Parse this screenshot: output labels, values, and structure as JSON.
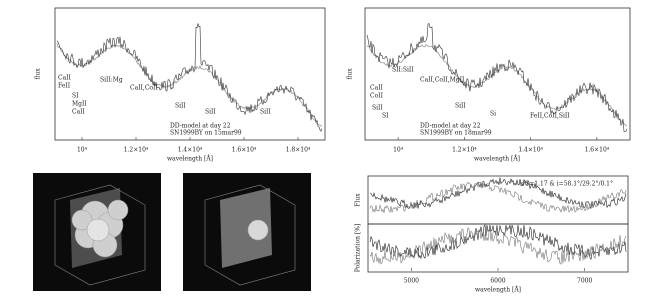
{
  "panels": [
    {
      "y_label": "flux",
      "x_label": "wavelength [Å]",
      "x_ticks": [
        "10⁴",
        "1.2×10⁴",
        "1.4×10⁴",
        "1.6×10⁴",
        "1.8×10⁴"
      ],
      "annotations": [
        "CaII",
        "FeII",
        "SI",
        "MgII",
        "CaII",
        "SiII:Mg",
        "CaII,CoII",
        "SiII",
        "SiII",
        "SiII"
      ],
      "legend": [
        "DD-model at day 22",
        "SN1999BY on 15mar99"
      ]
    },
    {
      "y_label": "flux",
      "x_label": "wavelength [Å]",
      "x_ticks": [
        "10⁴",
        "1.2×10⁴",
        "1.4×10⁴",
        "1.6×10⁴"
      ],
      "annotations": [
        "CaII",
        "CoII",
        "SiII",
        "SI",
        "SII:SiII",
        "CaII,CoII,MgII",
        "SiII",
        "Si",
        "FeII,CoII,SiII"
      ],
      "legend": [
        "DD-model at day 22",
        "SN1999BY on 18mar99"
      ]
    }
  ],
  "polarization": {
    "flux_label": "Flux",
    "pol_label": "Polarization [%]",
    "x_label": "wavelength [Å]",
    "x_ticks": [
      "5000",
      "6000",
      "7000"
    ],
    "annotation": "s/S=1.17 & i=58.1°/29.2°/0.1°"
  }
}
